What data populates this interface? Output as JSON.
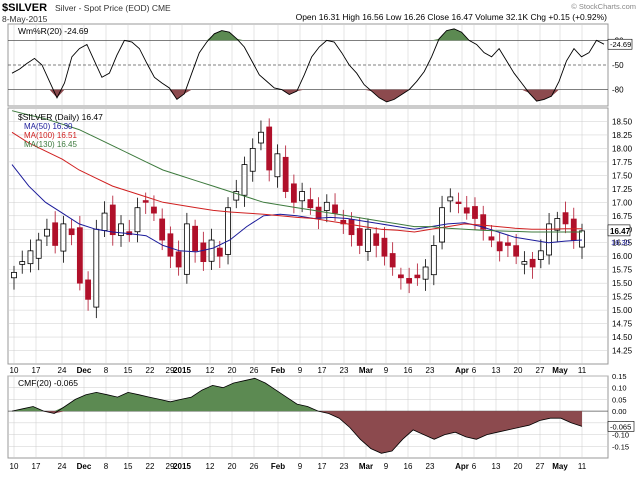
{
  "header": {
    "symbol": "$SILVER",
    "description": "Silver - Spot Price (EOD) CME",
    "date": "8-May-2015",
    "ohlc": "Open 16.31  High 16.56  Low 16.26  Close 16.47  Volume 32.1K  Chg +0.15 (+0.92%)",
    "watermark": "© StockCharts.com"
  },
  "colors": {
    "price_up": "#000000",
    "price_down": "#b0102a",
    "ma50": "#1b1b9a",
    "ma100": "#d02020",
    "ma130": "#3d7a3d",
    "fill_green": "#5c8a52",
    "fill_red": "#8c4a4e",
    "grid": "#cccccc"
  },
  "chart_data": [
    {
      "type": "line",
      "panel": "top",
      "legend": "Wm%R(20) -24.69",
      "ylim": [
        -100,
        0
      ],
      "reference_lines": [
        -20,
        -50,
        -80
      ],
      "y_ticks": [
        "-20",
        "-50",
        "-80"
      ],
      "last_value_label": "-24.69",
      "fill_above": -20,
      "fill_below": -80
    },
    {
      "type": "candlestick",
      "panel": "price",
      "legend": [
        "$SILVER (Daily) 16.47",
        "MA(50) 16.30",
        "MA(100) 16.51",
        "MA(130) 16.45"
      ],
      "ylim": [
        14.0,
        18.75
      ],
      "y_ticks": [
        "14.25",
        "14.50",
        "14.75",
        "15.00",
        "15.25",
        "15.50",
        "15.75",
        "16.00",
        "16.25",
        "16.50",
        "16.75",
        "17.00",
        "17.25",
        "17.50",
        "17.75",
        "18.00",
        "18.25",
        "18.50"
      ],
      "last_price_label": "16.47",
      "ma50_label": "16.30",
      "x_ticks": [
        "10",
        "17",
        "24",
        "Dec",
        "8",
        "15",
        "22",
        "29",
        "2015",
        "12",
        "20",
        "26",
        "Feb",
        "9",
        "17",
        "23",
        "Mar",
        "9",
        "16",
        "23",
        "Apr",
        "6",
        "13",
        "20",
        "27",
        "May",
        "11"
      ],
      "series_names": [
        "$SILVER",
        "MA(50)",
        "MA(100)",
        "MA(130)"
      ]
    },
    {
      "type": "area",
      "panel": "bottom",
      "legend": "CMF(20) -0.065",
      "ylim": [
        -0.2,
        0.15
      ],
      "y_ticks": [
        "0.15",
        "0.10",
        "0.05",
        "0.00",
        "-0.05",
        "-0.10",
        "-0.15"
      ],
      "last_value_label": "-0.065"
    }
  ]
}
